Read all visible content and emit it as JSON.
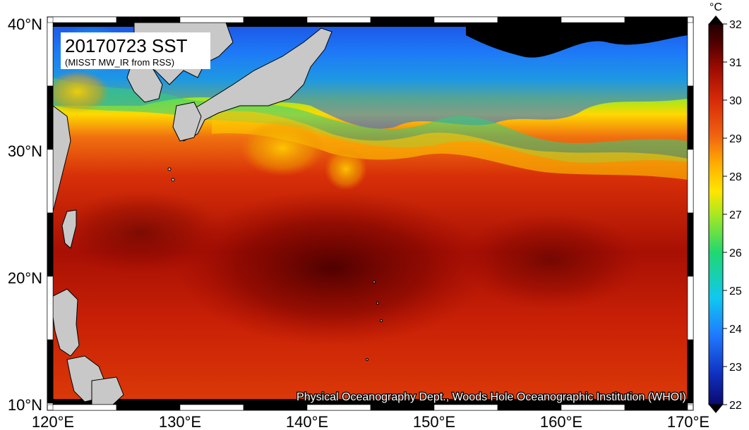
{
  "map": {
    "title": "20170723 SST",
    "subtitle": "(MISST MW_IR from RSS)",
    "credit": "Physical Oceanography Dept., Woods Hole Oceanographic Institution (WHOI)",
    "lon_labels": [
      "120°E",
      "130°E",
      "140°E",
      "150°E",
      "160°E",
      "170°E"
    ],
    "lat_labels": [
      "40°N",
      "30°N",
      "20°N",
      "10°N"
    ]
  },
  "colorbar": {
    "unit": "°C",
    "ticks": [
      "32",
      "31",
      "30",
      "29",
      "28",
      "27",
      "26",
      "25",
      "24",
      "23",
      "22"
    ],
    "min": 22,
    "max": 32
  },
  "colors": {
    "land": "#c8c8c8",
    "no_data": "#000000",
    "frame": "#000000"
  }
}
